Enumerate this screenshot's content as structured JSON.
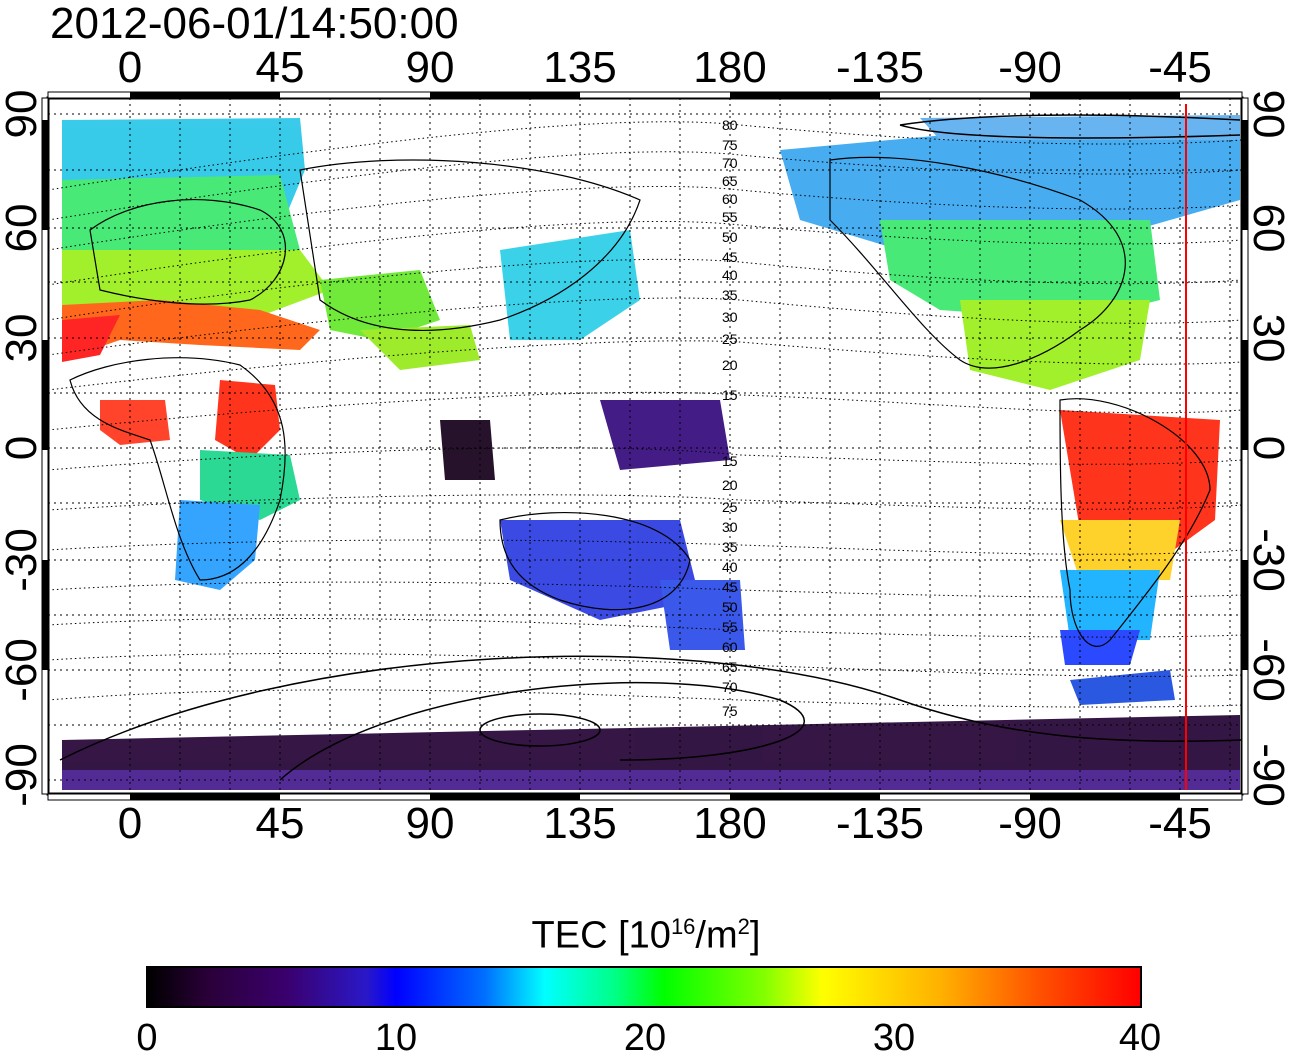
{
  "title": "2012-06-01/14:50:00",
  "lon_ticks_top": [
    "0",
    "45",
    "90",
    "135",
    "180",
    "-135",
    "-90",
    "-45"
  ],
  "lon_ticks_bottom": [
    "0",
    "45",
    "90",
    "135",
    "180",
    "-135",
    "-90",
    "-45"
  ],
  "lat_ticks_left": [
    "90",
    "60",
    "30",
    "0",
    "-30",
    "-60",
    "-90"
  ],
  "lat_ticks_right": [
    "90",
    "60",
    "30",
    "0",
    "-30",
    "-60",
    "-90"
  ],
  "contour_labels": [
    "80",
    "75",
    "70",
    "65",
    "60",
    "55",
    "50",
    "45",
    "40",
    "35",
    "30",
    "25",
    "20",
    "15",
    "15",
    "20",
    "25",
    "30",
    "35",
    "40",
    "45",
    "50",
    "55",
    "60",
    "65",
    "70",
    "75"
  ],
  "colorbar": {
    "label_main": "TEC  [10",
    "label_sup1": "16",
    "label_mid": "/m",
    "label_sup2": "2",
    "label_end": "]",
    "ticks": [
      "0",
      "10",
      "20",
      "30",
      "40"
    ],
    "min": 0,
    "max": 40
  },
  "colors": {
    "terminator_line": "#ff0000",
    "coastline": "#000000",
    "grid": "#000000"
  }
}
